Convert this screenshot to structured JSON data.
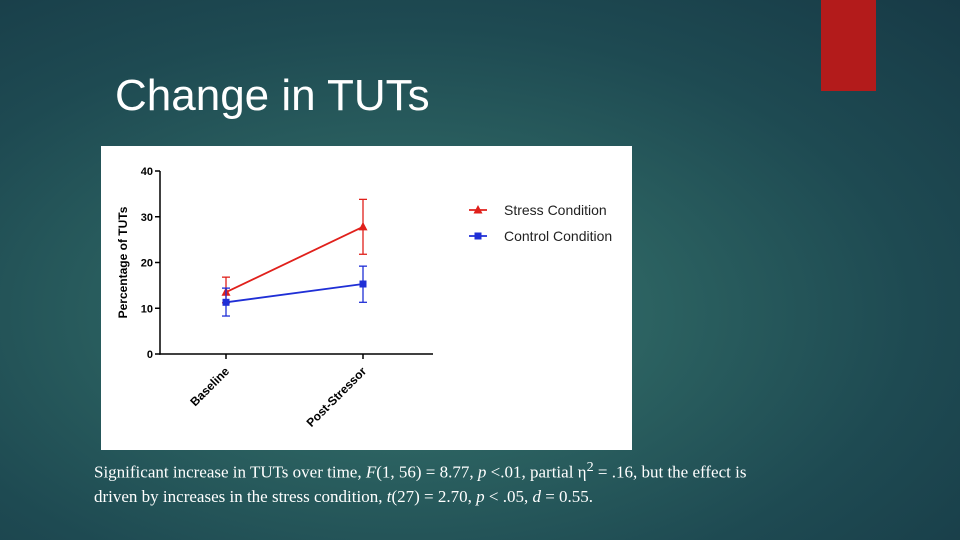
{
  "slide": {
    "title": "Change in TUTs",
    "accent_color": "#b31b1b"
  },
  "chart_data": {
    "type": "line",
    "title": "",
    "xlabel": "",
    "ylabel": "Percentage of TUTs",
    "categories": [
      "Baseline",
      "Post-Stressor"
    ],
    "ylim": [
      0,
      40
    ],
    "yticks": [
      0,
      10,
      20,
      30,
      40
    ],
    "grid": false,
    "legend_position": "top-right",
    "series": [
      {
        "name": "Stress Condition",
        "color": "#e0201b",
        "marker": "triangle",
        "values": [
          13.5,
          27.8
        ],
        "error_low": [
          11.2,
          21.8
        ],
        "error_high": [
          16.8,
          33.8
        ]
      },
      {
        "name": "Control Condition",
        "color": "#1f2fd6",
        "marker": "square",
        "values": [
          11.3,
          15.3
        ],
        "error_low": [
          8.3,
          11.3
        ],
        "error_high": [
          14.4,
          19.2
        ]
      }
    ]
  },
  "caption": {
    "line1_a": "Significant increase in TUTs over time, ",
    "line1_F": "F",
    "line1_b": "(1, 56) = 8.77, ",
    "line1_p": "p",
    "line1_c": " <.01, partial η",
    "line1_sup": "2",
    "line1_d": " = .16, but the effect is",
    "line2_a": "driven by increases in the stress condition, ",
    "line2_t": "t",
    "line2_b": "(27) = 2.70, ",
    "line2_p": "p",
    "line2_c": " < .05, ",
    "line2_d": "d",
    "line2_e": " = 0.55."
  }
}
